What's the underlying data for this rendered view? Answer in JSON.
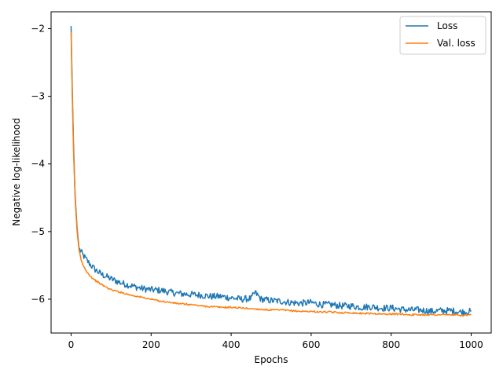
{
  "chart_data": {
    "type": "line",
    "xlabel": "Epochs",
    "ylabel": "Negative log-likelihood",
    "xlim": [
      -50,
      1050
    ],
    "ylim": [
      -6.5,
      -1.75
    ],
    "xticks": [
      0,
      200,
      400,
      600,
      800,
      1000
    ],
    "xtick_labels": [
      "0",
      "200",
      "400",
      "600",
      "800",
      "1000"
    ],
    "yticks": [
      -2,
      -3,
      -4,
      -5,
      -6
    ],
    "ytick_labels": [
      "−2",
      "−3",
      "−4",
      "−5",
      "−6"
    ],
    "grid": false,
    "legend": {
      "placement": "top-right"
    },
    "series": [
      {
        "name": "Loss",
        "color": "#1f77b4",
        "x": [
          0,
          3,
          6,
          10,
          15,
          20,
          25,
          30,
          40,
          50,
          60,
          75,
          90,
          100,
          125,
          150,
          175,
          200,
          225,
          250,
          275,
          300,
          325,
          350,
          375,
          400,
          425,
          450,
          460,
          475,
          500,
          525,
          550,
          575,
          600,
          625,
          650,
          675,
          700,
          725,
          750,
          775,
          800,
          825,
          850,
          875,
          900,
          925,
          950,
          975,
          1000
        ],
        "values": [
          -1.96,
          -2.9,
          -3.7,
          -4.45,
          -4.95,
          -5.25,
          -5.3,
          -5.35,
          -5.43,
          -5.5,
          -5.56,
          -5.63,
          -5.67,
          -5.7,
          -5.76,
          -5.8,
          -5.84,
          -5.86,
          -5.87,
          -5.9,
          -5.92,
          -5.93,
          -5.94,
          -5.96,
          -5.96,
          -5.98,
          -6.0,
          -5.99,
          -5.9,
          -6.0,
          -6.02,
          -6.03,
          -6.05,
          -6.06,
          -6.05,
          -6.08,
          -6.08,
          -6.1,
          -6.1,
          -6.12,
          -6.11,
          -6.13,
          -6.13,
          -6.15,
          -6.16,
          -6.16,
          -6.18,
          -6.17,
          -6.17,
          -6.19,
          -6.18
        ]
      },
      {
        "name": "Val. loss",
        "color": "#ff7f0e",
        "x": [
          0,
          3,
          6,
          10,
          15,
          20,
          25,
          30,
          40,
          50,
          60,
          75,
          90,
          100,
          125,
          150,
          175,
          200,
          225,
          250,
          275,
          300,
          325,
          350,
          375,
          400,
          425,
          450,
          475,
          500,
          525,
          550,
          575,
          600,
          625,
          650,
          675,
          700,
          725,
          750,
          775,
          800,
          825,
          850,
          875,
          900,
          925,
          950,
          975,
          1000
        ],
        "values": [
          -2.05,
          -3.0,
          -3.8,
          -4.5,
          -5.0,
          -5.28,
          -5.42,
          -5.5,
          -5.6,
          -5.67,
          -5.72,
          -5.78,
          -5.83,
          -5.86,
          -5.9,
          -5.94,
          -5.97,
          -6.0,
          -6.03,
          -6.05,
          -6.07,
          -6.08,
          -6.1,
          -6.11,
          -6.12,
          -6.12,
          -6.13,
          -6.14,
          -6.15,
          -6.16,
          -6.16,
          -6.17,
          -6.18,
          -6.18,
          -6.19,
          -6.19,
          -6.2,
          -6.2,
          -6.21,
          -6.21,
          -6.22,
          -6.22,
          -6.22,
          -6.23,
          -6.23,
          -6.23,
          -6.23,
          -6.23,
          -6.24,
          -6.23
        ]
      }
    ]
  }
}
